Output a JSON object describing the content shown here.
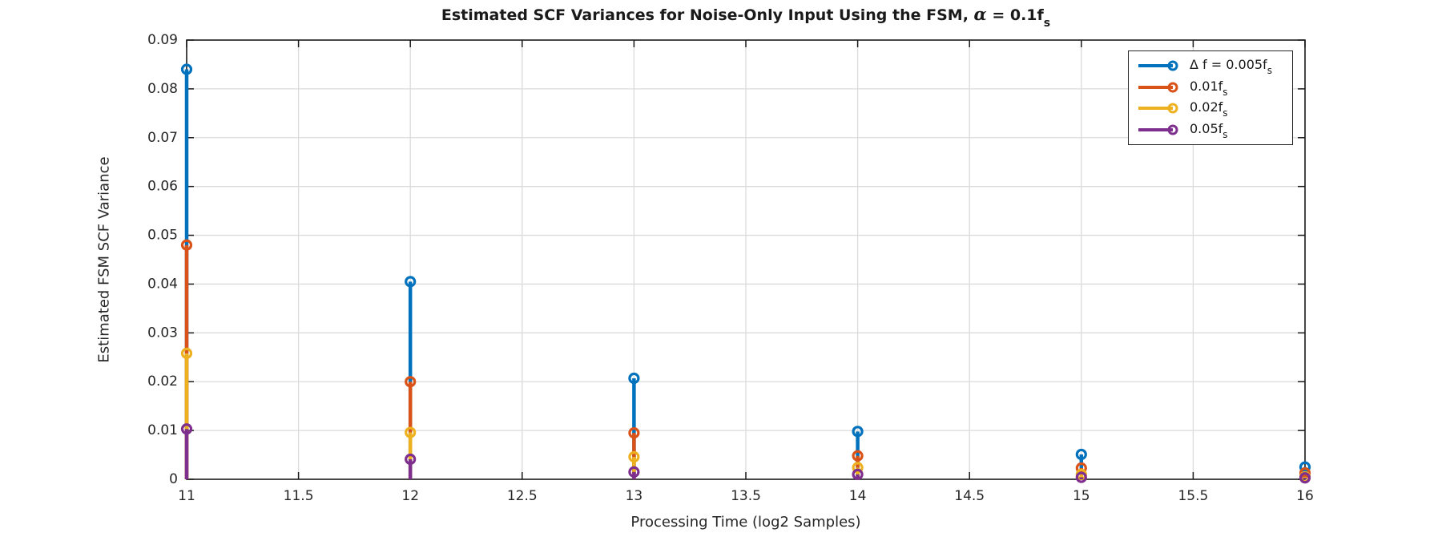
{
  "title": {
    "prefix": "Estimated SCF Variances for Noise-Only Input Using the FSM, ",
    "alpha": "α",
    "mid": " = 0.1f",
    "sub": "s"
  },
  "axes": {
    "xlabel": "Processing Time (log2 Samples)",
    "ylabel": "Estimated FSM SCF Variance",
    "x_ticks": [
      11,
      11.5,
      12,
      12.5,
      13,
      13.5,
      14,
      14.5,
      15,
      15.5,
      16
    ],
    "x_tick_labels": [
      "11",
      "11.5",
      "12",
      "12.5",
      "13",
      "13.5",
      "14",
      "14.5",
      "15",
      "15.5",
      "16"
    ],
    "y_ticks": [
      0,
      0.01,
      0.02,
      0.03,
      0.04,
      0.05,
      0.06,
      0.07,
      0.08,
      0.09
    ],
    "y_tick_labels": [
      "0",
      "0.01",
      "0.02",
      "0.03",
      "0.04",
      "0.05",
      "0.06",
      "0.07",
      "0.08",
      "0.09"
    ]
  },
  "chart_data": {
    "type": "stem",
    "title": "Estimated SCF Variances for Noise-Only Input Using the FSM, α = 0.1f_s",
    "xlabel": "Processing Time (log2 Samples)",
    "ylabel": "Estimated FSM SCF Variance",
    "x": [
      11,
      12,
      13,
      14,
      15,
      16
    ],
    "series": [
      {
        "name": "Δ f = 0.005f_s",
        "label_prefix": "Δ f = 0.005f",
        "label_sub": "s",
        "color": "#0072BD",
        "values": [
          0.084,
          0.0405,
          0.0207,
          0.0098,
          0.0051,
          0.0025
        ]
      },
      {
        "name": "0.01f_s",
        "label_prefix": "0.01f",
        "label_sub": "s",
        "color": "#D95319",
        "values": [
          0.048,
          0.02,
          0.0095,
          0.0048,
          0.0023,
          0.0013
        ]
      },
      {
        "name": "0.02f_s",
        "label_prefix": "0.02f",
        "label_sub": "s",
        "color": "#EDB120",
        "values": [
          0.0258,
          0.0096,
          0.0046,
          0.0024,
          0.001,
          0.0005
        ]
      },
      {
        "name": "0.05f_s",
        "label_prefix": "0.05f",
        "label_sub": "s",
        "color": "#7E2F8E",
        "values": [
          0.0103,
          0.0041,
          0.0015,
          0.001,
          0.0004,
          0.0003
        ]
      }
    ],
    "xlim": [
      11,
      16
    ],
    "ylim": [
      0,
      0.09
    ],
    "grid": true,
    "legend_position": "top-right",
    "baseline": 0
  },
  "colors": {
    "background": "#ffffff",
    "axis": "#1a1a1a",
    "grid": "#dbdbdb",
    "tick_text": "#262626"
  }
}
